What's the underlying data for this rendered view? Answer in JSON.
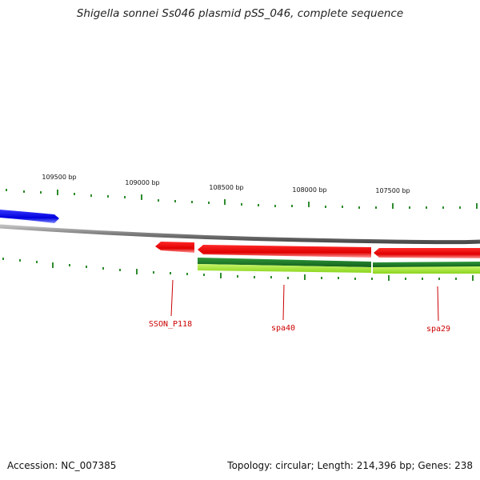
{
  "title": "Shigella sonnei Ss046 plasmid pSS_046, complete sequence",
  "footer": {
    "accession": "Accession: NC_007385",
    "summary": "Topology: circular; Length: 214,396 bp; Genes: 238"
  },
  "colors": {
    "backbone": "#8c8c8c",
    "tick": "#2e8b2e",
    "forward_gene": "#0000ee",
    "reverse_gene": "#ee0000",
    "feature_dark": "#1f7a2a",
    "feature_light": "#a6e22e",
    "label": "#cc0000"
  },
  "scale_labels": [
    "109500 bp",
    "109000 bp",
    "108500 bp",
    "108000 bp",
    "107500 bp"
  ],
  "gene_labels": [
    "SSON_P118",
    "spa40",
    "spa29"
  ]
}
